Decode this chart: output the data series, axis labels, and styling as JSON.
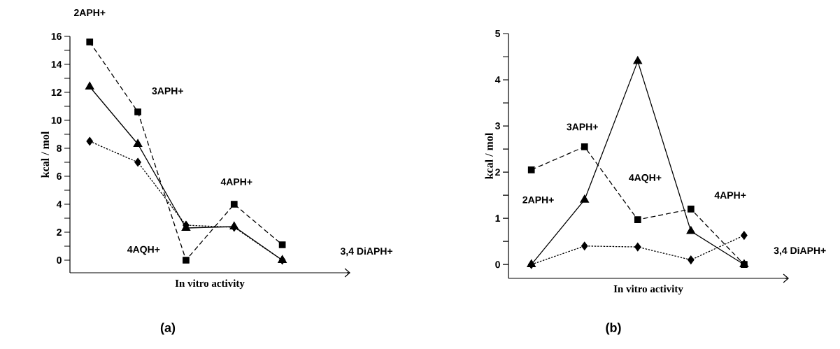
{
  "chart_data": [
    {
      "type": "line",
      "title": "(a)",
      "xlabel": "In vitro activity",
      "ylabel": "kcal / mol",
      "categories": [
        null,
        null,
        null,
        null,
        null
      ],
      "annotations": [
        "2APH+",
        "3APH+",
        "4AQH+",
        "4APH+",
        "3,4 DiAPH+"
      ],
      "ylim": [
        -0.9,
        16
      ],
      "yticks": [
        0,
        {
          "value": 1,
          "label": null
        },
        2,
        {
          "value": 3,
          "label": null
        },
        4,
        {
          "value": 5,
          "label": null
        },
        6,
        {
          "value": 7,
          "label": null
        },
        8,
        {
          "value": 9,
          "label": null
        },
        10,
        {
          "value": 11,
          "label": null
        },
        12,
        {
          "value": 13,
          "label": null
        },
        14,
        {
          "value": 15,
          "label": null
        },
        16
      ],
      "tick_labels": "y",
      "series": [
        {
          "color": "#000000",
          "marker": "square",
          "line_style": "dashed",
          "values": [
            15.6,
            10.6,
            0,
            4.0,
            1.1
          ]
        },
        {
          "color": "#000000",
          "marker": "triangle",
          "line_style": "solid",
          "values": [
            12.4,
            8.3,
            2.3,
            2.4,
            0
          ]
        },
        {
          "color": "#000000",
          "marker": "diamond",
          "line_style": "dotted",
          "values": [
            8.5,
            7.0,
            2.5,
            2.35,
            0
          ]
        }
      ]
    },
    {
      "type": "line",
      "title": "(b)",
      "xlabel": "In vitro activity",
      "ylabel": "kcal / mol",
      "categories": [
        null,
        null,
        null,
        null,
        null
      ],
      "annotations": [
        "2APH+",
        "3APH+",
        "4AQH+",
        "4APH+",
        "3,4 DiAPH+"
      ],
      "ylim": [
        -0.3,
        5
      ],
      "yticks": [
        0,
        {
          "value": 0.5,
          "label": null
        },
        1,
        {
          "value": 1.5,
          "label": null
        },
        2,
        {
          "value": 2.5,
          "label": null
        },
        3,
        {
          "value": 3.5,
          "label": null
        },
        4,
        {
          "value": 4.5,
          "label": null
        },
        5
      ],
      "tick_labels": "y",
      "series": [
        {
          "color": "#000000",
          "marker": "square",
          "line_style": "dashed",
          "values": [
            2.05,
            2.55,
            0.97,
            1.2,
            0
          ]
        },
        {
          "color": "#000000",
          "marker": "triangle",
          "line_style": "solid",
          "values": [
            0,
            1.4,
            4.4,
            0.72,
            0
          ]
        },
        {
          "color": "#000000",
          "marker": "diamond",
          "line_style": "dotted",
          "values": [
            0,
            0.4,
            0.38,
            0.1,
            0.63
          ]
        }
      ]
    }
  ]
}
